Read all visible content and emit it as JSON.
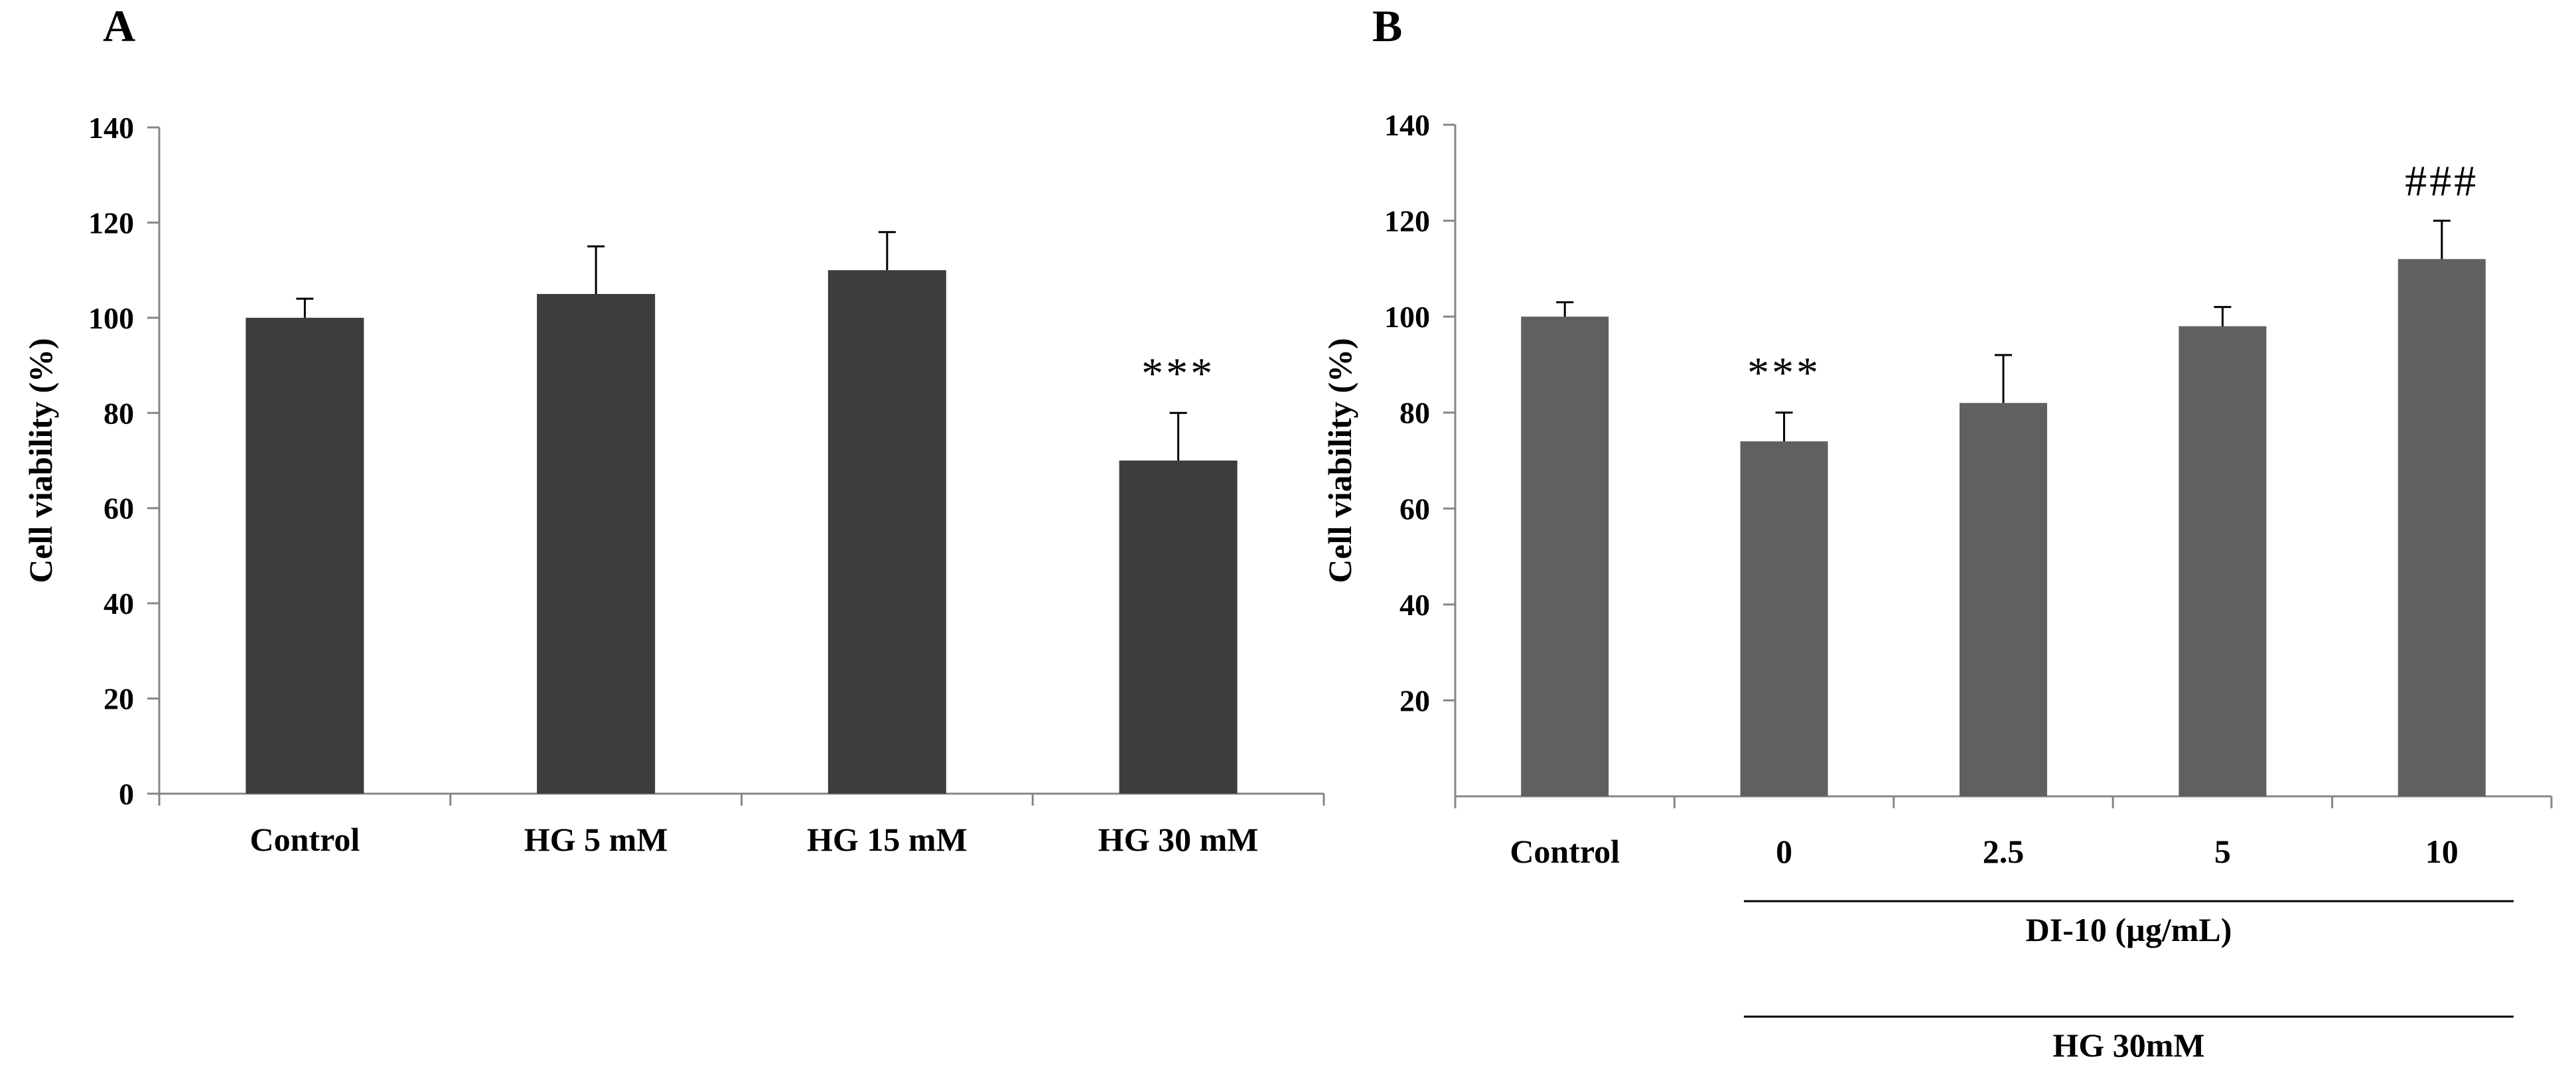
{
  "chart_data": [
    {
      "panel": "A",
      "type": "bar",
      "ylabel": "Cell viability (%)",
      "xlabel": "",
      "ylim": [
        0,
        140
      ],
      "yticks": [
        "0",
        "20",
        "40",
        "60",
        "80",
        "100",
        "120",
        "140"
      ],
      "categories": [
        "Control",
        "HG 5 mM",
        "HG 15 mM",
        "HG 30 mM"
      ],
      "series": [
        {
          "name": "Cell viability",
          "values": [
            100,
            105,
            110,
            70
          ],
          "errors": [
            4,
            10,
            8,
            10
          ]
        }
      ],
      "annotations": [
        "",
        "",
        "",
        "***"
      ],
      "bar_color": "#3d3d3d"
    },
    {
      "panel": "B",
      "type": "bar",
      "ylabel": "Cell viability (%)",
      "xlabel": "",
      "ylim": [
        0,
        140
      ],
      "yticks": [
        "20",
        "40",
        "60",
        "80",
        "100",
        "120",
        "140"
      ],
      "categories": [
        "Control",
        "0",
        "2.5",
        "5",
        "10"
      ],
      "series": [
        {
          "name": "Cell viability",
          "values": [
            100,
            74,
            82,
            98,
            112
          ],
          "errors": [
            3,
            6,
            10,
            4,
            8
          ]
        }
      ],
      "annotations": [
        "",
        "***",
        "",
        "",
        "###"
      ],
      "group_labels": [
        "DI-10 (µg/mL)",
        "HG 30mM"
      ],
      "bar_color": "#606060"
    }
  ]
}
